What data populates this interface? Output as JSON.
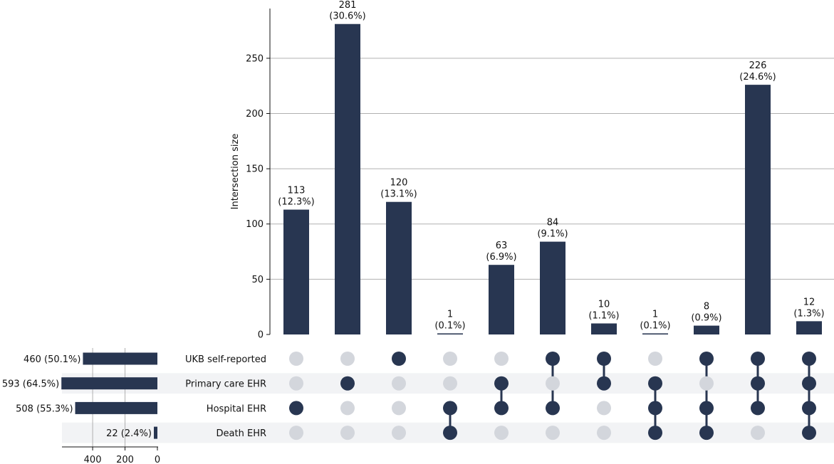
{
  "chart_data": {
    "type": "upset",
    "ylabel": "Intersection size",
    "ylim": [
      0,
      295
    ],
    "yticks": [
      0,
      50,
      100,
      150,
      200,
      250
    ],
    "set_size_ticks": [
      400,
      200,
      0
    ],
    "grid": true,
    "colors": {
      "bar": "#283651",
      "inactive_dot": "#d3d6dc",
      "stripe": "#f2f3f5",
      "grid": "#b0b0b0"
    },
    "sets": [
      {
        "name": "UKB self-reported",
        "size": 460,
        "size_label": "460 (50.1%)"
      },
      {
        "name": "Primary care EHR",
        "size": 593,
        "size_label": "593 (64.5%)"
      },
      {
        "name": "Hospital EHR",
        "size": 508,
        "size_label": "508 (55.3%)"
      },
      {
        "name": "Death EHR",
        "size": 22,
        "size_label": "22 (2.4%)"
      }
    ],
    "intersections": [
      {
        "value": 113,
        "count_label": "113",
        "pct_label": "(12.3%)",
        "members": [
          2
        ]
      },
      {
        "value": 281,
        "count_label": "281",
        "pct_label": "(30.6%)",
        "members": [
          1
        ]
      },
      {
        "value": 120,
        "count_label": "120",
        "pct_label": "(13.1%)",
        "members": [
          0
        ]
      },
      {
        "value": 1,
        "count_label": "1",
        "pct_label": "(0.1%)",
        "members": [
          2,
          3
        ]
      },
      {
        "value": 63,
        "count_label": "63",
        "pct_label": "(6.9%)",
        "members": [
          1,
          2
        ]
      },
      {
        "value": 84,
        "count_label": "84",
        "pct_label": "(9.1%)",
        "members": [
          0,
          2
        ]
      },
      {
        "value": 10,
        "count_label": "10",
        "pct_label": "(1.1%)",
        "members": [
          0,
          1
        ]
      },
      {
        "value": 1,
        "count_label": "1",
        "pct_label": "(0.1%)",
        "members": [
          1,
          2,
          3
        ]
      },
      {
        "value": 8,
        "count_label": "8",
        "pct_label": "(0.9%)",
        "members": [
          0,
          2,
          3
        ]
      },
      {
        "value": 226,
        "count_label": "226",
        "pct_label": "(24.6%)",
        "members": [
          0,
          1,
          2
        ]
      },
      {
        "value": 12,
        "count_label": "12",
        "pct_label": "(1.3%)",
        "members": [
          0,
          1,
          2,
          3
        ]
      }
    ]
  }
}
